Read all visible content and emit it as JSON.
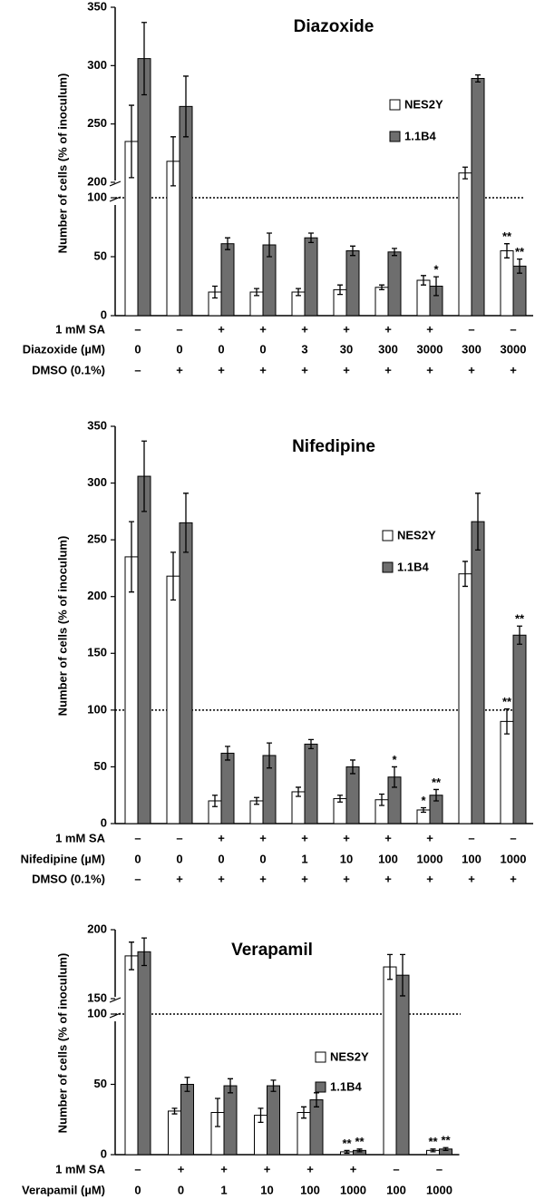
{
  "chart_data": [
    {
      "type": "bar",
      "title": "Diazoxide",
      "y_label": "Number of cells (% of inoculum)",
      "ylim": [
        0,
        350
      ],
      "y_break": [
        100,
        200
      ],
      "yticks": [
        0,
        50,
        100,
        200,
        250,
        300,
        350
      ],
      "reference_line": 100,
      "series": [
        {
          "name": "NES2Y",
          "color": "#ffffff",
          "values": [
            235,
            218,
            20,
            20,
            20,
            22,
            24,
            30,
            208,
            55
          ],
          "errors": [
            31,
            21,
            5,
            3,
            3,
            4,
            2,
            4,
            5,
            6
          ],
          "annotations": [
            null,
            null,
            null,
            null,
            null,
            null,
            null,
            null,
            null,
            "**"
          ]
        },
        {
          "name": "1.1B4",
          "color": "#6e6e6e",
          "values": [
            306,
            265,
            61,
            60,
            66,
            55,
            54,
            25,
            289,
            42
          ],
          "errors": [
            31,
            26,
            5,
            10,
            4,
            4,
            3,
            8,
            3,
            6
          ],
          "annotations": [
            null,
            null,
            null,
            null,
            null,
            null,
            null,
            "*",
            null,
            "**"
          ]
        }
      ],
      "conditions": [
        {
          "label": "1 mM SA",
          "values": [
            "–",
            "–",
            "+",
            "+",
            "+",
            "+",
            "+",
            "+",
            "–",
            "–"
          ]
        },
        {
          "label": "Diazoxide (µM)",
          "values": [
            "0",
            "0",
            "0",
            "0",
            "3",
            "30",
            "300",
            "3000",
            "300",
            "3000"
          ]
        },
        {
          "label": "DMSO (0.1%)",
          "values": [
            "–",
            "+",
            "+",
            "+",
            "+",
            "+",
            "+",
            "+",
            "+",
            "+"
          ]
        }
      ]
    },
    {
      "type": "bar",
      "title": "Nifedipine",
      "y_label": "Number of cells (% of inoculum)",
      "ylim": [
        0,
        350
      ],
      "yticks": [
        0,
        50,
        100,
        150,
        200,
        250,
        300,
        350
      ],
      "reference_line": 100,
      "series": [
        {
          "name": "NES2Y",
          "color": "#ffffff",
          "values": [
            235,
            218,
            20,
            20,
            28,
            22,
            21,
            12,
            220,
            90
          ],
          "errors": [
            31,
            21,
            5,
            3,
            4,
            3,
            5,
            2,
            11,
            11
          ],
          "annotations": [
            null,
            null,
            null,
            null,
            null,
            null,
            null,
            "*",
            null,
            "**"
          ]
        },
        {
          "name": "1.1B4",
          "color": "#6e6e6e",
          "values": [
            306,
            265,
            62,
            60,
            70,
            50,
            41,
            25,
            266,
            166
          ],
          "errors": [
            31,
            26,
            6,
            11,
            4,
            6,
            9,
            5,
            25,
            8
          ],
          "annotations": [
            null,
            null,
            null,
            null,
            null,
            null,
            "*",
            "**",
            null,
            "**"
          ]
        }
      ],
      "conditions": [
        {
          "label": "1 mM SA",
          "values": [
            "–",
            "–",
            "+",
            "+",
            "+",
            "+",
            "+",
            "+",
            "–",
            "–"
          ]
        },
        {
          "label": "Nifedipine (µM)",
          "values": [
            "0",
            "0",
            "0",
            "0",
            "1",
            "10",
            "100",
            "1000",
            "100",
            "1000"
          ]
        },
        {
          "label": "DMSO (0.1%)",
          "values": [
            "–",
            "+",
            "+",
            "+",
            "+",
            "+",
            "+",
            "+",
            "+",
            "+"
          ]
        }
      ]
    },
    {
      "type": "bar",
      "title": "Verapamil",
      "y_label": "Number of cells (% of inoculum)",
      "ylim": [
        0,
        200
      ],
      "y_break": [
        100,
        150
      ],
      "yticks": [
        0,
        50,
        100,
        150,
        200
      ],
      "reference_line": 100,
      "series": [
        {
          "name": "NES2Y",
          "color": "#ffffff",
          "values": [
            181,
            31,
            30,
            28,
            30,
            2,
            173,
            3
          ],
          "errors": [
            10,
            2,
            10,
            5,
            4,
            1,
            9,
            1
          ],
          "annotations": [
            null,
            null,
            null,
            null,
            null,
            "**",
            null,
            "**"
          ]
        },
        {
          "name": "1.1B4",
          "color": "#6e6e6e",
          "values": [
            184,
            50,
            49,
            49,
            39,
            3,
            167,
            4
          ],
          "errors": [
            10,
            5,
            5,
            4,
            5,
            1,
            15,
            1
          ],
          "annotations": [
            null,
            null,
            null,
            null,
            null,
            "**",
            null,
            "**"
          ]
        }
      ],
      "conditions": [
        {
          "label": "1 mM SA",
          "values": [
            "–",
            "+",
            "+",
            "+",
            "+",
            "+",
            "–",
            "–"
          ]
        },
        {
          "label": "Verapamil (µM)",
          "values": [
            "0",
            "0",
            "1",
            "10",
            "100",
            "1000",
            "100",
            "1000"
          ]
        }
      ]
    }
  ]
}
